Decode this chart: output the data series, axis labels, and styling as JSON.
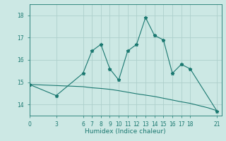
{
  "xlabel": "Humidex (Indice chaleur)",
  "ylabel": "",
  "bg_color": "#cce8e4",
  "line_color": "#1a7870",
  "grid_color": "#aed0cc",
  "x_main": [
    0,
    3,
    6,
    7,
    8,
    9,
    10,
    11,
    12,
    13,
    14,
    15,
    16,
    17,
    18,
    21
  ],
  "y_main": [
    14.9,
    14.4,
    15.4,
    16.4,
    16.7,
    15.6,
    15.1,
    16.4,
    16.7,
    17.9,
    17.1,
    16.9,
    15.4,
    15.8,
    15.6,
    13.7
  ],
  "x_ref": [
    0,
    3,
    6,
    7,
    8,
    9,
    10,
    11,
    12,
    13,
    14,
    15,
    16,
    17,
    18,
    19,
    20,
    21
  ],
  "y_ref": [
    14.9,
    14.85,
    14.8,
    14.75,
    14.72,
    14.68,
    14.62,
    14.55,
    14.48,
    14.42,
    14.36,
    14.28,
    14.2,
    14.12,
    14.05,
    13.95,
    13.85,
    13.72
  ],
  "ylim": [
    13.5,
    18.5
  ],
  "xlim": [
    0,
    21.5
  ],
  "yticks": [
    14,
    15,
    16,
    17,
    18
  ],
  "xticks": [
    0,
    3,
    6,
    7,
    8,
    9,
    10,
    11,
    12,
    13,
    14,
    15,
    16,
    17,
    18,
    21
  ],
  "tick_fontsize": 5.5,
  "xlabel_fontsize": 6.5
}
